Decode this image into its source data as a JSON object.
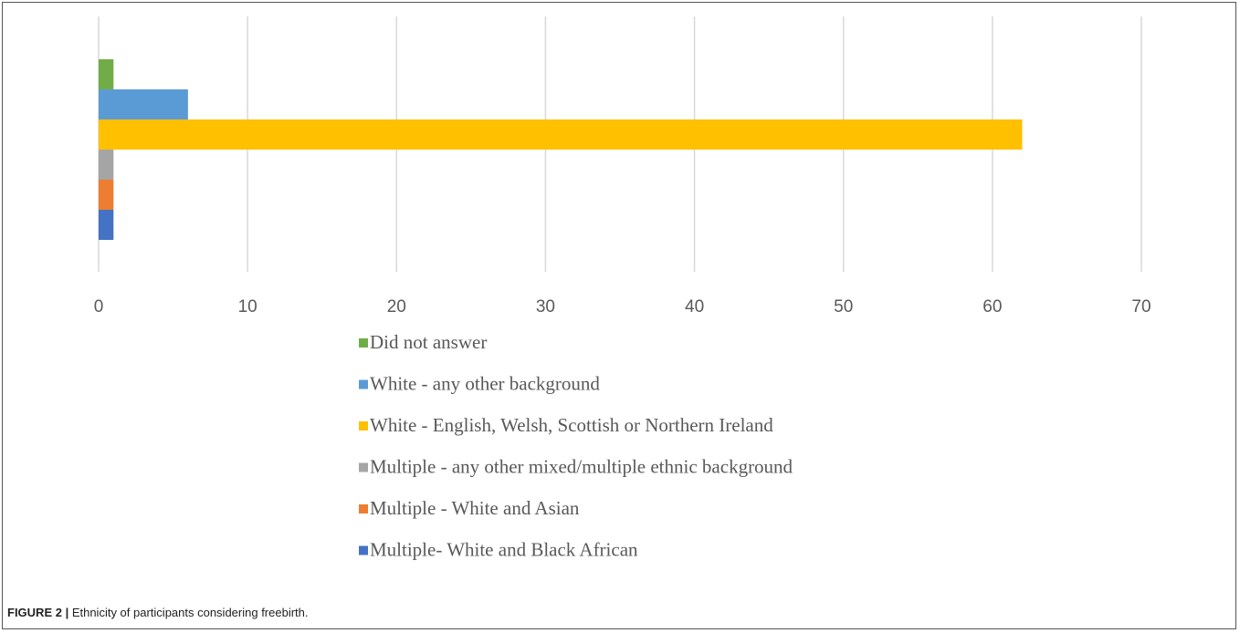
{
  "chart_data": {
    "type": "bar",
    "orientation": "horizontal",
    "title": "",
    "xlabel": "",
    "ylabel": "",
    "xlim": [
      0,
      70
    ],
    "x_ticks": [
      0,
      10,
      20,
      30,
      40,
      50,
      60,
      70
    ],
    "grid": "vertical",
    "legend_placement": "bottom",
    "series": [
      {
        "name": "Did not answer",
        "value": 1,
        "color": "#70AD47"
      },
      {
        "name": "White - any other background",
        "value": 6,
        "color": "#5B9BD5"
      },
      {
        "name": "White - English, Welsh, Scottish or Northern Ireland",
        "value": 62,
        "color": "#FFC000"
      },
      {
        "name": "Multiple - any other mixed/multiple ethnic background",
        "value": 1,
        "color": "#A5A5A5"
      },
      {
        "name": "Multiple - White and Asian",
        "value": 1,
        "color": "#ED7D31"
      },
      {
        "name": "Multiple- White and Black African",
        "value": 1,
        "color": "#4472C4"
      }
    ]
  },
  "caption": {
    "label": "FIGURE 2 |",
    "text": " Ethnicity of participants considering freebirth."
  }
}
